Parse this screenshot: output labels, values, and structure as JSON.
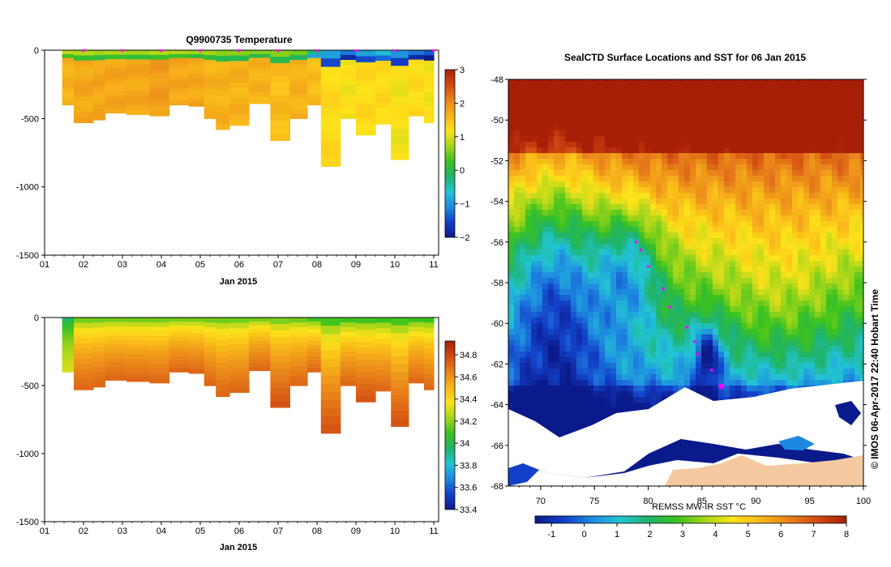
{
  "colors": {
    "temp": [
      "#0b1a8a",
      "#1340c8",
      "#1e88e0",
      "#22c4d4",
      "#1fb36a",
      "#3bc21f",
      "#a6d61a",
      "#ffe21a",
      "#f7b41a",
      "#e8821a",
      "#d24a12",
      "#a81f08"
    ],
    "salt": [
      "#0b1a8a",
      "#1340c8",
      "#1e88e0",
      "#22c4d4",
      "#1fb36a",
      "#3bc21f",
      "#a6d61a",
      "#ffe21a",
      "#f7b41a",
      "#e8821a",
      "#d24a12",
      "#a81f08"
    ],
    "sst": [
      "#0b1a8a",
      "#1340c8",
      "#1e88e0",
      "#22c4d4",
      "#1fb36a",
      "#3bc21f",
      "#a6d61a",
      "#ffe21a",
      "#f7b41a",
      "#e8821a",
      "#d24a12",
      "#a81f08"
    ],
    "marker": "#ff00ff",
    "land": "#f5c9a0"
  },
  "chart_data": [
    {
      "type": "heatmap",
      "title": "Q9900735  Temperature",
      "xlabel": "Jan 2015",
      "ylabel": "",
      "x_ticks": [
        "01",
        "02",
        "03",
        "04",
        "05",
        "06",
        "07",
        "08",
        "09",
        "10",
        "11"
      ],
      "y_ticks": [
        "0",
        "-500",
        "-1000",
        "-1500"
      ],
      "ylim": [
        -1500,
        0
      ],
      "colorbar": {
        "range": [
          -2,
          3
        ],
        "ticks": [
          "3",
          "2",
          "1",
          "0",
          "−1",
          "−2"
        ]
      },
      "profiles": [
        {
          "day": 1.45,
          "depth": 400,
          "surface": 0.6,
          "deep": 1.8
        },
        {
          "day": 1.75,
          "depth": 530,
          "surface": 0.5,
          "deep": 1.9
        },
        {
          "day": 2.25,
          "depth": 510,
          "surface": 0.4,
          "deep": 1.9
        },
        {
          "day": 2.55,
          "depth": 460,
          "surface": 0.5,
          "deep": 1.9
        },
        {
          "day": 3.1,
          "depth": 470,
          "surface": 0.4,
          "deep": 1.9
        },
        {
          "day": 3.7,
          "depth": 480,
          "surface": 0.5,
          "deep": 2.0
        },
        {
          "day": 4.2,
          "depth": 400,
          "surface": 0.5,
          "deep": 1.9
        },
        {
          "day": 4.7,
          "depth": 410,
          "surface": 0.4,
          "deep": 1.9
        },
        {
          "day": 5.1,
          "depth": 500,
          "surface": 0.4,
          "deep": 1.8
        },
        {
          "day": 5.4,
          "depth": 580,
          "surface": 0.3,
          "deep": 1.8
        },
        {
          "day": 5.75,
          "depth": 550,
          "surface": 0.3,
          "deep": 1.8
        },
        {
          "day": 6.25,
          "depth": 390,
          "surface": 0.3,
          "deep": 1.8
        },
        {
          "day": 6.8,
          "depth": 660,
          "surface": 0.3,
          "deep": 1.7
        },
        {
          "day": 7.3,
          "depth": 500,
          "surface": 0.2,
          "deep": 1.8
        },
        {
          "day": 7.75,
          "depth": 400,
          "surface": -0.6,
          "deep": 1.7
        },
        {
          "day": 8.1,
          "depth": 850,
          "surface": -1.2,
          "deep": 1.4
        },
        {
          "day": 8.6,
          "depth": 500,
          "surface": -1.5,
          "deep": 1.3
        },
        {
          "day": 9.0,
          "depth": 620,
          "surface": -1.2,
          "deep": 1.4
        },
        {
          "day": 9.5,
          "depth": 540,
          "surface": -1.0,
          "deep": 1.4
        },
        {
          "day": 9.9,
          "depth": 800,
          "surface": -1.3,
          "deep": 1.3
        },
        {
          "day": 10.35,
          "depth": 480,
          "surface": -1.5,
          "deep": 1.4
        },
        {
          "day": 10.75,
          "depth": 530,
          "surface": -1.7,
          "deep": 1.3
        }
      ],
      "surface_marks_days": [
        2,
        3,
        4,
        5,
        6,
        7,
        8,
        9,
        10,
        11
      ]
    },
    {
      "type": "heatmap",
      "title": "",
      "xlabel": "Jan 2015",
      "ylabel": "",
      "x_ticks": [
        "01",
        "02",
        "03",
        "04",
        "05",
        "06",
        "07",
        "08",
        "09",
        "10",
        "11"
      ],
      "y_ticks": [
        "0",
        "-500",
        "-1000",
        "-1500"
      ],
      "ylim": [
        -1500,
        0
      ],
      "colorbar": {
        "range": [
          33.4,
          34.9
        ],
        "ticks": [
          "34.8",
          "34.6",
          "34.4",
          "34.2",
          "34",
          "33.8",
          "33.6",
          "33.4"
        ]
      },
      "profiles": [
        {
          "day": 1.45,
          "depth": 400,
          "surface": 33.8,
          "deep": 34.3
        },
        {
          "day": 1.75,
          "depth": 530,
          "surface": 33.9,
          "deep": 34.7
        },
        {
          "day": 2.25,
          "depth": 510,
          "surface": 33.9,
          "deep": 34.7
        },
        {
          "day": 2.55,
          "depth": 460,
          "surface": 33.9,
          "deep": 34.7
        },
        {
          "day": 3.1,
          "depth": 470,
          "surface": 33.9,
          "deep": 34.7
        },
        {
          "day": 3.7,
          "depth": 480,
          "surface": 33.9,
          "deep": 34.7
        },
        {
          "day": 4.2,
          "depth": 400,
          "surface": 33.9,
          "deep": 34.7
        },
        {
          "day": 4.7,
          "depth": 410,
          "surface": 33.9,
          "deep": 34.7
        },
        {
          "day": 5.1,
          "depth": 500,
          "surface": 33.9,
          "deep": 34.7
        },
        {
          "day": 5.4,
          "depth": 580,
          "surface": 33.9,
          "deep": 34.7
        },
        {
          "day": 5.75,
          "depth": 550,
          "surface": 33.9,
          "deep": 34.7
        },
        {
          "day": 6.25,
          "depth": 390,
          "surface": 33.9,
          "deep": 34.7
        },
        {
          "day": 6.8,
          "depth": 660,
          "surface": 33.9,
          "deep": 34.75
        },
        {
          "day": 7.3,
          "depth": 500,
          "surface": 33.9,
          "deep": 34.7
        },
        {
          "day": 7.75,
          "depth": 400,
          "surface": 33.8,
          "deep": 34.7
        },
        {
          "day": 8.1,
          "depth": 850,
          "surface": 33.8,
          "deep": 34.75
        },
        {
          "day": 8.6,
          "depth": 500,
          "surface": 33.8,
          "deep": 34.7
        },
        {
          "day": 9.0,
          "depth": 620,
          "surface": 33.8,
          "deep": 34.75
        },
        {
          "day": 9.5,
          "depth": 540,
          "surface": 33.8,
          "deep": 34.7
        },
        {
          "day": 9.9,
          "depth": 800,
          "surface": 33.8,
          "deep": 34.75
        },
        {
          "day": 10.35,
          "depth": 480,
          "surface": 33.8,
          "deep": 34.7
        },
        {
          "day": 10.75,
          "depth": 530,
          "surface": 33.8,
          "deep": 34.7
        }
      ]
    },
    {
      "type": "heatmap",
      "title": "SealCTD Surface Locations and SST for 06 Jan 2015",
      "xlabel": "",
      "ylabel": "",
      "x_ticks": [
        "70",
        "75",
        "80",
        "85",
        "90",
        "95",
        "100"
      ],
      "y_ticks": [
        "-48",
        "-50",
        "-52",
        "-54",
        "-56",
        "-58",
        "-60",
        "-62",
        "-64",
        "-66",
        "-68"
      ],
      "xlim": [
        67,
        100
      ],
      "ylim": [
        -68,
        -48
      ],
      "colorbar_label": "REMSS MW-IR SST °C",
      "colorbar": {
        "range": [
          -1.5,
          8
        ],
        "ticks": [
          "-1",
          "0",
          "1",
          "2",
          "3",
          "4",
          "5",
          "6",
          "7",
          "8"
        ]
      },
      "seal_positions": [
        {
          "lon": 78.9,
          "lat": -56.0
        },
        {
          "lon": 79.3,
          "lat": -56.4
        },
        {
          "lon": 80.0,
          "lat": -57.2
        },
        {
          "lon": 81.4,
          "lat": -58.3
        },
        {
          "lon": 82.0,
          "lat": -59.2
        },
        {
          "lon": 83.6,
          "lat": -60.2
        },
        {
          "lon": 84.3,
          "lat": -60.9
        },
        {
          "lon": 84.6,
          "lat": -61.5
        },
        {
          "lon": 85.9,
          "lat": -62.3
        },
        {
          "lon": 86.8,
          "lat": -63.1
        }
      ],
      "credit": "©  IMOS 06-Apr-2017 22:40 Hobart Time"
    }
  ]
}
